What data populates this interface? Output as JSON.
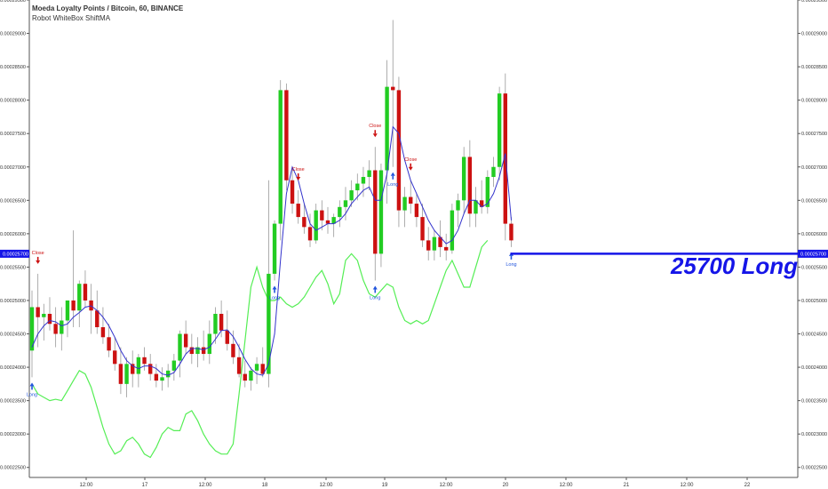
{
  "header": {
    "title": "Moeda Loyalty Points / Bitcoin, 60, BINANCE",
    "indicator": "Robot WhiteBox ShiftMA"
  },
  "signal": {
    "text": "25700 Long",
    "price_tag": "0.00025700",
    "price": 0.000257,
    "color": "#1515e8"
  },
  "colors": {
    "up": "#22cc22",
    "down": "#cc1111",
    "ma": "#3333cc",
    "shift": "#55ee55",
    "long": "#2255dd",
    "close": "#cc1111",
    "axis_text": "#333333"
  },
  "chart_data": {
    "type": "candlestick",
    "title": "Moeda Loyalty Points / Bitcoin, 60, BINANCE",
    "ylim": [
      0.0002235,
      0.000295
    ],
    "y_ticks": [
      "0.00022500",
      "0.00023000",
      "0.00023500",
      "0.00024000",
      "0.00024500",
      "0.00025000",
      "0.00025500",
      "0.00026000",
      "0.00026500",
      "0.00027000",
      "0.00027500",
      "0.00028000",
      "0.00028500",
      "0.00029000",
      "0.00029500"
    ],
    "x_ticks": [
      "12:00",
      "17",
      "12:00",
      "18",
      "12:00",
      "19",
      "12:00",
      "20",
      "12:00",
      "21",
      "12:00",
      "22"
    ],
    "candles": [
      {
        "o": 24250,
        "h": 25150,
        "l": 23850,
        "c": 24900
      },
      {
        "o": 24900,
        "h": 25400,
        "l": 24300,
        "c": 24750
      },
      {
        "o": 24750,
        "h": 24950,
        "l": 24400,
        "c": 24800
      },
      {
        "o": 24800,
        "h": 25050,
        "l": 24550,
        "c": 24650
      },
      {
        "o": 24650,
        "h": 24900,
        "l": 24300,
        "c": 24500
      },
      {
        "o": 24500,
        "h": 24900,
        "l": 24250,
        "c": 24700
      },
      {
        "o": 24700,
        "h": 25000,
        "l": 24450,
        "c": 25000
      },
      {
        "o": 25000,
        "h": 26050,
        "l": 24600,
        "c": 24850
      },
      {
        "o": 24850,
        "h": 25300,
        "l": 24600,
        "c": 25250
      },
      {
        "o": 25250,
        "h": 25450,
        "l": 24900,
        "c": 25000
      },
      {
        "o": 25000,
        "h": 25250,
        "l": 24500,
        "c": 24850
      },
      {
        "o": 24850,
        "h": 25150,
        "l": 24500,
        "c": 24600
      },
      {
        "o": 24600,
        "h": 24900,
        "l": 24350,
        "c": 24450
      },
      {
        "o": 24450,
        "h": 24650,
        "l": 24150,
        "c": 24250
      },
      {
        "o": 24250,
        "h": 24450,
        "l": 23950,
        "c": 24050
      },
      {
        "o": 24050,
        "h": 24300,
        "l": 23600,
        "c": 23750
      },
      {
        "o": 23750,
        "h": 24150,
        "l": 23550,
        "c": 24050
      },
      {
        "o": 24050,
        "h": 24250,
        "l": 23700,
        "c": 23900
      },
      {
        "o": 23900,
        "h": 24200,
        "l": 23700,
        "c": 24150
      },
      {
        "o": 24150,
        "h": 24300,
        "l": 23950,
        "c": 24050
      },
      {
        "o": 24050,
        "h": 24200,
        "l": 23800,
        "c": 23900
      },
      {
        "o": 23900,
        "h": 24050,
        "l": 23700,
        "c": 23800
      },
      {
        "o": 23800,
        "h": 24000,
        "l": 23650,
        "c": 23850
      },
      {
        "o": 23850,
        "h": 24050,
        "l": 23700,
        "c": 23950
      },
      {
        "o": 23950,
        "h": 24200,
        "l": 23800,
        "c": 24100
      },
      {
        "o": 24100,
        "h": 24550,
        "l": 23850,
        "c": 24500
      },
      {
        "o": 24500,
        "h": 24700,
        "l": 24200,
        "c": 24300
      },
      {
        "o": 24300,
        "h": 24500,
        "l": 24050,
        "c": 24200
      },
      {
        "o": 24200,
        "h": 24450,
        "l": 24000,
        "c": 24300
      },
      {
        "o": 24300,
        "h": 24550,
        "l": 24100,
        "c": 24200
      },
      {
        "o": 24200,
        "h": 24700,
        "l": 24050,
        "c": 24500
      },
      {
        "o": 24500,
        "h": 24900,
        "l": 24350,
        "c": 24800
      },
      {
        "o": 24800,
        "h": 25000,
        "l": 24450,
        "c": 24550
      },
      {
        "o": 24550,
        "h": 24850,
        "l": 24250,
        "c": 24350
      },
      {
        "o": 24350,
        "h": 24550,
        "l": 24050,
        "c": 24150
      },
      {
        "o": 24150,
        "h": 24350,
        "l": 23850,
        "c": 23900
      },
      {
        "o": 23900,
        "h": 24100,
        "l": 23700,
        "c": 23800
      },
      {
        "o": 23800,
        "h": 24000,
        "l": 23650,
        "c": 23950
      },
      {
        "o": 23950,
        "h": 24150,
        "l": 23750,
        "c": 24050
      },
      {
        "o": 24050,
        "h": 24300,
        "l": 23850,
        "c": 23900
      },
      {
        "o": 23900,
        "h": 26800,
        "l": 23700,
        "c": 25400
      },
      {
        "o": 25400,
        "h": 26200,
        "l": 25300,
        "c": 26150
      },
      {
        "o": 26150,
        "h": 28300,
        "l": 25900,
        "c": 28150
      },
      {
        "o": 28150,
        "h": 28250,
        "l": 26650,
        "c": 26800
      },
      {
        "o": 26800,
        "h": 27000,
        "l": 26300,
        "c": 26450
      },
      {
        "o": 26450,
        "h": 26650,
        "l": 26150,
        "c": 26250
      },
      {
        "o": 26250,
        "h": 26450,
        "l": 26000,
        "c": 26100
      },
      {
        "o": 26100,
        "h": 26300,
        "l": 25800,
        "c": 25900
      },
      {
        "o": 25900,
        "h": 26450,
        "l": 25850,
        "c": 26350
      },
      {
        "o": 26350,
        "h": 26500,
        "l": 26050,
        "c": 26200
      },
      {
        "o": 26200,
        "h": 26400,
        "l": 26000,
        "c": 26150
      },
      {
        "o": 26150,
        "h": 26300,
        "l": 25950,
        "c": 26250
      },
      {
        "o": 26250,
        "h": 26500,
        "l": 26100,
        "c": 26400
      },
      {
        "o": 26400,
        "h": 26700,
        "l": 26200,
        "c": 26500
      },
      {
        "o": 26500,
        "h": 26800,
        "l": 26400,
        "c": 26650
      },
      {
        "o": 26650,
        "h": 26900,
        "l": 26500,
        "c": 26750
      },
      {
        "o": 26750,
        "h": 27000,
        "l": 26550,
        "c": 26850
      },
      {
        "o": 26850,
        "h": 27100,
        "l": 26650,
        "c": 26950
      },
      {
        "o": 26950,
        "h": 27300,
        "l": 25300,
        "c": 25700
      },
      {
        "o": 25700,
        "h": 27050,
        "l": 25500,
        "c": 26950
      },
      {
        "o": 26950,
        "h": 28600,
        "l": 26450,
        "c": 28200
      },
      {
        "o": 28200,
        "h": 29200,
        "l": 27000,
        "c": 28150
      },
      {
        "o": 28150,
        "h": 28350,
        "l": 26100,
        "c": 26350
      },
      {
        "o": 26350,
        "h": 26700,
        "l": 26100,
        "c": 26550
      },
      {
        "o": 26550,
        "h": 26800,
        "l": 26300,
        "c": 26450
      },
      {
        "o": 26450,
        "h": 26600,
        "l": 26100,
        "c": 26250
      },
      {
        "o": 26250,
        "h": 26450,
        "l": 25800,
        "c": 25900
      },
      {
        "o": 25900,
        "h": 26100,
        "l": 25600,
        "c": 25750
      },
      {
        "o": 25750,
        "h": 26050,
        "l": 25600,
        "c": 25950
      },
      {
        "o": 25950,
        "h": 26200,
        "l": 25650,
        "c": 25800
      },
      {
        "o": 25800,
        "h": 26000,
        "l": 25600,
        "c": 25750
      },
      {
        "o": 25750,
        "h": 26450,
        "l": 25700,
        "c": 26350
      },
      {
        "o": 26350,
        "h": 26600,
        "l": 26100,
        "c": 26500
      },
      {
        "o": 26500,
        "h": 27300,
        "l": 26300,
        "c": 27150
      },
      {
        "o": 27150,
        "h": 27400,
        "l": 26100,
        "c": 26300
      },
      {
        "o": 26300,
        "h": 26700,
        "l": 26100,
        "c": 26500
      },
      {
        "o": 26500,
        "h": 26800,
        "l": 26300,
        "c": 26400
      },
      {
        "o": 26400,
        "h": 26950,
        "l": 26300,
        "c": 26850
      },
      {
        "o": 26850,
        "h": 27150,
        "l": 26700,
        "c": 27000
      },
      {
        "o": 27000,
        "h": 28200,
        "l": 26800,
        "c": 28100
      },
      {
        "o": 28100,
        "h": 28400,
        "l": 25900,
        "c": 26150
      },
      {
        "o": 26150,
        "h": 26250,
        "l": 25800,
        "c": 25900
      }
    ],
    "ma": [
      24300,
      24500,
      24620,
      24700,
      24680,
      24620,
      24650,
      24750,
      24820,
      24900,
      24920,
      24850,
      24750,
      24620,
      24450,
      24250,
      24100,
      24020,
      23980,
      24020,
      24020,
      23980,
      23900,
      23880,
      23920,
      24050,
      24200,
      24280,
      24280,
      24260,
      24300,
      24420,
      24550,
      24560,
      24460,
      24300,
      24120,
      23980,
      23900,
      23880,
      24050,
      24500,
      25600,
      26600,
      27000,
      26800,
      26450,
      26150,
      26050,
      26100,
      26150,
      26150,
      26200,
      26300,
      26450,
      26550,
      26650,
      26700,
      26500,
      26500,
      26900,
      27600,
      27500,
      27100,
      26800,
      26600,
      26400,
      26200,
      26050,
      25950,
      25850,
      25900,
      26050,
      26300,
      26500,
      26500,
      26400,
      26450,
      26600,
      26850,
      27200,
      26200
    ],
    "shift": [
      23750,
      23600,
      23550,
      23500,
      23520,
      23500,
      23650,
      23800,
      23950,
      23900,
      23700,
      23400,
      23100,
      22850,
      22700,
      22750,
      22900,
      22950,
      22850,
      22700,
      22650,
      22800,
      23000,
      23100,
      23050,
      23050,
      23300,
      23350,
      23200,
      23000,
      22850,
      22750,
      22700,
      22700,
      22850,
      23600,
      24400,
      25200,
      25500,
      25200,
      25000,
      25000,
      25050,
      24950,
      24900,
      24950,
      25050,
      25200,
      25350,
      25450,
      25250,
      24950,
      25100,
      25600,
      25700,
      25600,
      25300,
      25100,
      25050,
      25150,
      25250,
      25200,
      24900,
      24700,
      24650,
      24700,
      24650,
      24700,
      24950,
      25200,
      25450,
      25600,
      25400,
      25200,
      25200,
      25500,
      25800,
      25900
    ],
    "signals": [
      {
        "type": "Long",
        "label": "Long",
        "index": 0
      },
      {
        "type": "Close",
        "label": "Close",
        "index": 1
      },
      {
        "type": "Long",
        "label": "Long",
        "index": 41
      },
      {
        "type": "Close",
        "label": "Close",
        "index": 45
      },
      {
        "type": "Long",
        "label": "Long",
        "index": 58
      },
      {
        "type": "Close",
        "label": "Close",
        "index": 58
      },
      {
        "type": "Long",
        "label": "Long",
        "index": 61
      },
      {
        "type": "Close",
        "label": "Close",
        "index": 64
      },
      {
        "type": "Long",
        "label": "Long",
        "index": 81
      }
    ]
  }
}
